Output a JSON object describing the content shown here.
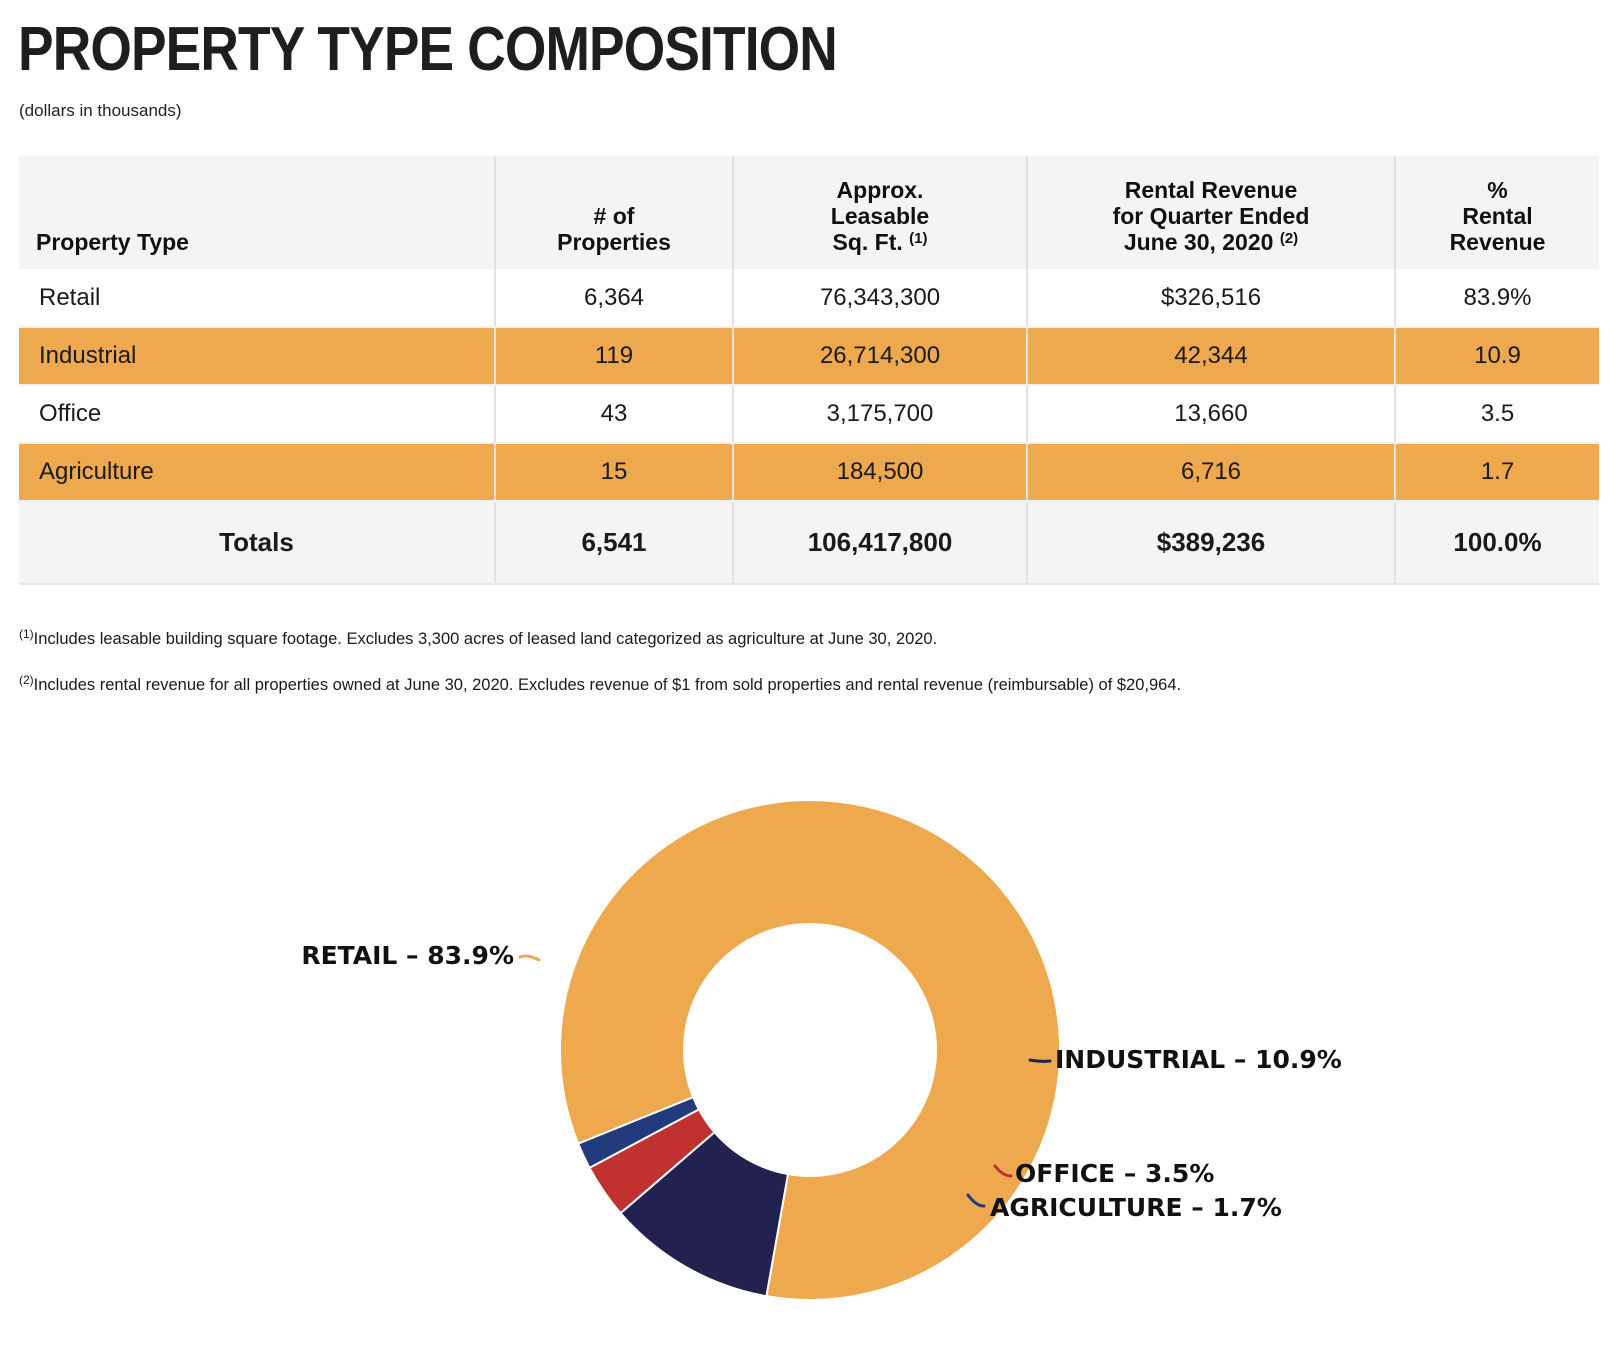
{
  "title": "PROPERTY TYPE COMPOSITION",
  "subtitle": "(dollars in thousands)",
  "table": {
    "headers": {
      "property_type": "Property Type",
      "properties": [
        "# of",
        "Properties"
      ],
      "sqft": [
        "Approx.",
        "Leasable",
        "Sq. Ft."
      ],
      "sqft_note": "(1)",
      "revenue": [
        "Rental Revenue",
        "for Quarter Ended",
        "June 30, 2020"
      ],
      "revenue_note": "(2)",
      "pct": [
        "%",
        "Rental",
        "Revenue"
      ]
    },
    "rows": [
      {
        "type": "Retail",
        "properties": "6,364",
        "sqft": "76,343,300",
        "revenue": "$326,516",
        "pct": "83.9%"
      },
      {
        "type": "Industrial",
        "properties": "119",
        "sqft": "26,714,300",
        "revenue": "42,344",
        "pct": "10.9"
      },
      {
        "type": "Office",
        "properties": "43",
        "sqft": "3,175,700",
        "revenue": "13,660",
        "pct": "3.5"
      },
      {
        "type": "Agriculture",
        "properties": "15",
        "sqft": "184,500",
        "revenue": "6,716",
        "pct": "1.7"
      }
    ],
    "totals": {
      "label": "Totals",
      "properties": "6,541",
      "sqft": "106,417,800",
      "revenue": "$389,236",
      "pct": "100.0%"
    }
  },
  "footnotes": [
    {
      "mark": "(1)",
      "text": "Includes leasable building square footage. Excludes 3,300 acres of leased land categorized as agriculture at June 30, 2020."
    },
    {
      "mark": "(2)",
      "text": "Includes rental revenue for all properties owned at June 30, 2020. Excludes revenue of $1 from sold properties and rental revenue (reimbursable) of $20,964."
    }
  ],
  "chart_data": {
    "type": "pie",
    "donut": true,
    "categories": [
      "RETAIL",
      "INDUSTRIAL",
      "OFFICE",
      "AGRICULTURE"
    ],
    "values": [
      83.9,
      10.9,
      3.5,
      1.7
    ],
    "labels": [
      "RETAIL – 83.9%",
      "INDUSTRIAL – 10.9%",
      "OFFICE – 3.5%",
      "AGRICULTURE – 1.7%"
    ],
    "colors": [
      "#eea84e",
      "#23214f",
      "#c0312f",
      "#223b7d"
    ],
    "title": ""
  }
}
